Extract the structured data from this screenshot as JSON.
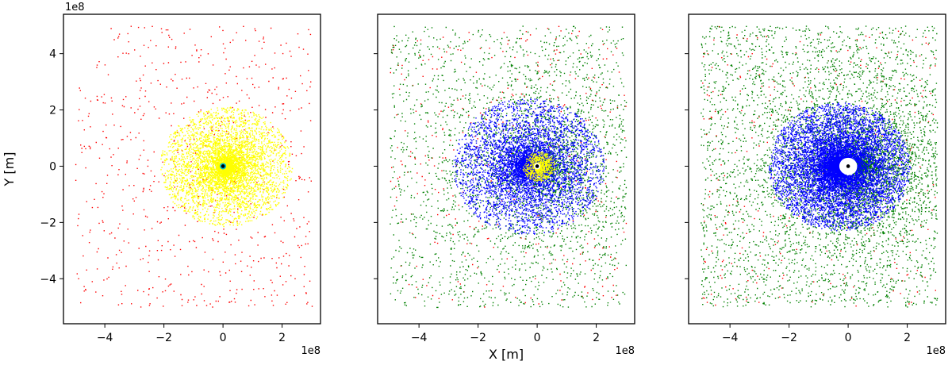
{
  "chart_data": [
    {
      "type": "scatter",
      "panel": 1,
      "xlim": [
        -540000000.0,
        330000000.0
      ],
      "ylim": [
        -560000000.0,
        540000000.0
      ],
      "x_ticks": [
        -400000000.0,
        -200000000.0,
        0,
        200000000.0
      ],
      "x_tick_labels": [
        "−4",
        "−2",
        "0",
        "2"
      ],
      "y_ticks": [
        -400000000.0,
        -200000000.0,
        0,
        200000000.0,
        400000000.0
      ],
      "y_tick_labels": [
        "−4",
        "−2",
        "0",
        "2",
        "4"
      ],
      "x_offset_label": "1e8",
      "y_offset_label": "1e8",
      "xlabel": "",
      "ylabel": "Y [m]",
      "grid": false,
      "central_body": {
        "x": 0,
        "y": 0,
        "color": "#000000",
        "ring_color": "#00bcd4"
      },
      "series": [
        {
          "color": "#ff0000",
          "distribution": "uniform",
          "count": 700,
          "x_range": [
            -500000000.0,
            300000000.0
          ],
          "y_range": [
            -500000000.0,
            500000000.0
          ]
        },
        {
          "color": "#ffff00",
          "distribution": "central_cloud",
          "count": 6000,
          "center": [
            0,
            0
          ],
          "typical_radius": 140000000.0,
          "shift_x": 10000000.0
        }
      ]
    },
    {
      "type": "scatter",
      "panel": 2,
      "xlim": [
        -540000000.0,
        330000000.0
      ],
      "ylim": [
        -560000000.0,
        540000000.0
      ],
      "x_ticks": [
        -400000000.0,
        -200000000.0,
        0,
        200000000.0
      ],
      "x_tick_labels": [
        "−4",
        "−2",
        "0",
        "2"
      ],
      "x_offset_label": "1e8",
      "xlabel": "X [m]",
      "ylabel": "",
      "grid": false,
      "central_body": {
        "x": 0,
        "y": 0,
        "color": "#000000",
        "ring_color": "#ffffff"
      },
      "series": [
        {
          "color": "#ff0000",
          "distribution": "uniform",
          "count": 350,
          "x_range": [
            -500000000.0,
            300000000.0
          ],
          "y_range": [
            -500000000.0,
            500000000.0
          ]
        },
        {
          "color": "#008000",
          "distribution": "uniform_plus_cloud",
          "count": 3500,
          "center": [
            30000000.0,
            0
          ],
          "typical_radius": 260000000.0
        },
        {
          "color": "#0000ff",
          "distribution": "central_cloud",
          "count": 6500,
          "center": [
            -30000000.0,
            0
          ],
          "typical_radius": 160000000.0
        },
        {
          "color": "#ffff00",
          "distribution": "central_cloud",
          "count": 900,
          "center": [
            5000000.0,
            0
          ],
          "typical_radius": 35000000.0
        }
      ]
    },
    {
      "type": "scatter",
      "panel": 3,
      "xlim": [
        -540000000.0,
        330000000.0
      ],
      "ylim": [
        -560000000.0,
        540000000.0
      ],
      "x_ticks": [
        -400000000.0,
        -200000000.0,
        0,
        200000000.0
      ],
      "x_tick_labels": [
        "−4",
        "−2",
        "0",
        "2"
      ],
      "x_offset_label": "1e8",
      "xlabel": "",
      "ylabel": "",
      "grid": false,
      "central_body": {
        "x": 0,
        "y": 0,
        "color": "#000000",
        "ring_color": "#ffffff",
        "cleared_radius": 30000000.0
      },
      "series": [
        {
          "color": "#ff0000",
          "distribution": "uniform",
          "count": 300,
          "x_range": [
            -500000000.0,
            300000000.0
          ],
          "y_range": [
            -500000000.0,
            500000000.0
          ]
        },
        {
          "color": "#008000",
          "distribution": "uniform_plus_cloud",
          "count": 6000,
          "center": [
            40000000.0,
            0
          ],
          "typical_radius": 240000000.0
        },
        {
          "color": "#0000ff",
          "distribution": "central_cloud",
          "count": 9000,
          "center": [
            -30000000.0,
            0
          ],
          "typical_radius": 150000000.0
        }
      ]
    }
  ]
}
